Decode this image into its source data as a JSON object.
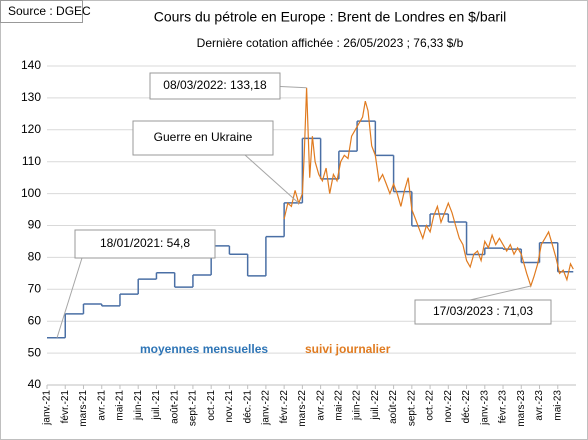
{
  "chart_data": {
    "type": "line",
    "source": "Source : DGEC",
    "title": "Cours du pétrole en Europe : Brent de Londres en $/baril",
    "subtitle": "Dernière cotation affichée : 26/05/2023 ; 76,33 $/b",
    "xlim": [
      0,
      29
    ],
    "xticks": [
      {
        "value": 0,
        "label": "janv.-21"
      },
      {
        "value": 1,
        "label": "févr.-21"
      },
      {
        "value": 2,
        "label": "mars-21"
      },
      {
        "value": 3,
        "label": "avr.-21"
      },
      {
        "value": 4,
        "label": "mai-21"
      },
      {
        "value": 5,
        "label": "juin-21"
      },
      {
        "value": 6,
        "label": "juil.-21"
      },
      {
        "value": 7,
        "label": "août-21"
      },
      {
        "value": 8,
        "label": "sept.-21"
      },
      {
        "value": 9,
        "label": "oct.-21"
      },
      {
        "value": 10,
        "label": "nov.-21"
      },
      {
        "value": 11,
        "label": "déc.-21"
      },
      {
        "value": 12,
        "label": "janv.-22"
      },
      {
        "value": 13,
        "label": "févr.-22"
      },
      {
        "value": 14,
        "label": "mars-22"
      },
      {
        "value": 15,
        "label": "avr.-22"
      },
      {
        "value": 16,
        "label": "mai-22"
      },
      {
        "value": 17,
        "label": "juin-22"
      },
      {
        "value": 18,
        "label": "juil.-22"
      },
      {
        "value": 19,
        "label": "août-22"
      },
      {
        "value": 20,
        "label": "sept.-22"
      },
      {
        "value": 21,
        "label": "oct.-22"
      },
      {
        "value": 22,
        "label": "nov.-22"
      },
      {
        "value": 23,
        "label": "déc.-22"
      },
      {
        "value": 24,
        "label": "janv.-23"
      },
      {
        "value": 25,
        "label": "févr.-23"
      },
      {
        "value": 26,
        "label": "mars-23"
      },
      {
        "value": 27,
        "label": "avr.-23"
      },
      {
        "value": 28,
        "label": "mai-23"
      }
    ],
    "ylim": [
      40,
      140
    ],
    "yticks": [
      40,
      50,
      60,
      70,
      80,
      90,
      100,
      110,
      120,
      130,
      140
    ],
    "grid": true,
    "series": [
      {
        "name": "moyennes mensuelles",
        "color": "#4a6fa5",
        "label_color": "#2e75b6",
        "step": true,
        "x": [
          0,
          1,
          2,
          3,
          4,
          5,
          6,
          7,
          8,
          9,
          10,
          11,
          12,
          13,
          14,
          15,
          16,
          17,
          18,
          19,
          20,
          21,
          22,
          23,
          24,
          25,
          26,
          27,
          28
        ],
        "values": [
          54.8,
          62.3,
          65.4,
          64.8,
          68.5,
          73.2,
          75.2,
          70.7,
          74.5,
          83.6,
          81.0,
          74.2,
          86.5,
          97.1,
          117.3,
          104.6,
          113.3,
          122.7,
          112.0,
          100.6,
          89.9,
          93.6,
          91.1,
          80.9,
          82.9,
          82.6,
          78.4,
          84.6,
          75.5
        ]
      },
      {
        "name": "suivi journalier",
        "color": "#e07b20",
        "label_color": "#e07b20",
        "step": false,
        "x": [
          13.0,
          13.2,
          13.4,
          13.6,
          13.8,
          14.0,
          14.1,
          14.23,
          14.4,
          14.55,
          14.7,
          14.9,
          15.1,
          15.3,
          15.5,
          15.7,
          15.9,
          16.1,
          16.3,
          16.5,
          16.7,
          16.9,
          17.1,
          17.3,
          17.45,
          17.6,
          17.8,
          18.0,
          18.2,
          18.4,
          18.6,
          18.8,
          19.0,
          19.2,
          19.4,
          19.6,
          19.8,
          20.0,
          20.2,
          20.4,
          20.6,
          20.8,
          21.0,
          21.2,
          21.4,
          21.6,
          21.8,
          22.0,
          22.2,
          22.4,
          22.6,
          22.8,
          23.0,
          23.2,
          23.4,
          23.6,
          23.8,
          24.0,
          24.2,
          24.4,
          24.6,
          24.8,
          25.0,
          25.2,
          25.4,
          25.6,
          25.8,
          26.0,
          26.3,
          26.52,
          26.7,
          26.9,
          27.1,
          27.3,
          27.5,
          27.7,
          27.9,
          28.1,
          28.3,
          28.5,
          28.7,
          28.85
        ],
        "values": [
          92,
          97,
          96,
          101,
          97,
          100,
          112,
          133.18,
          105,
          118,
          110,
          106,
          104,
          108,
          100,
          106,
          104,
          110,
          112,
          111,
          118,
          120,
          122,
          124,
          129,
          126,
          115,
          112,
          104,
          106,
          103,
          100,
          103,
          100,
          96,
          101,
          105,
          95,
          92,
          89,
          86,
          90,
          88,
          93,
          96,
          91,
          94,
          97,
          94,
          90,
          86,
          84,
          79,
          77,
          81,
          82,
          79,
          85,
          83,
          87,
          84,
          86,
          84,
          82,
          84,
          81,
          83,
          81,
          75,
          71.03,
          74,
          78,
          84,
          86,
          88,
          84,
          80,
          75,
          76,
          73,
          78,
          76.33
        ]
      }
    ],
    "annotations": [
      {
        "text": "08/03/2022: 133,18",
        "x": 14.23,
        "y": 133.18
      },
      {
        "text": "Guerre en Ukraine",
        "x": 13.8,
        "y": 97
      },
      {
        "text": "18/01/2021: 54,8",
        "x": 0.55,
        "y": 54.8
      },
      {
        "text": "17/03/2023 : 71,03",
        "x": 26.52,
        "y": 71.03
      }
    ]
  }
}
